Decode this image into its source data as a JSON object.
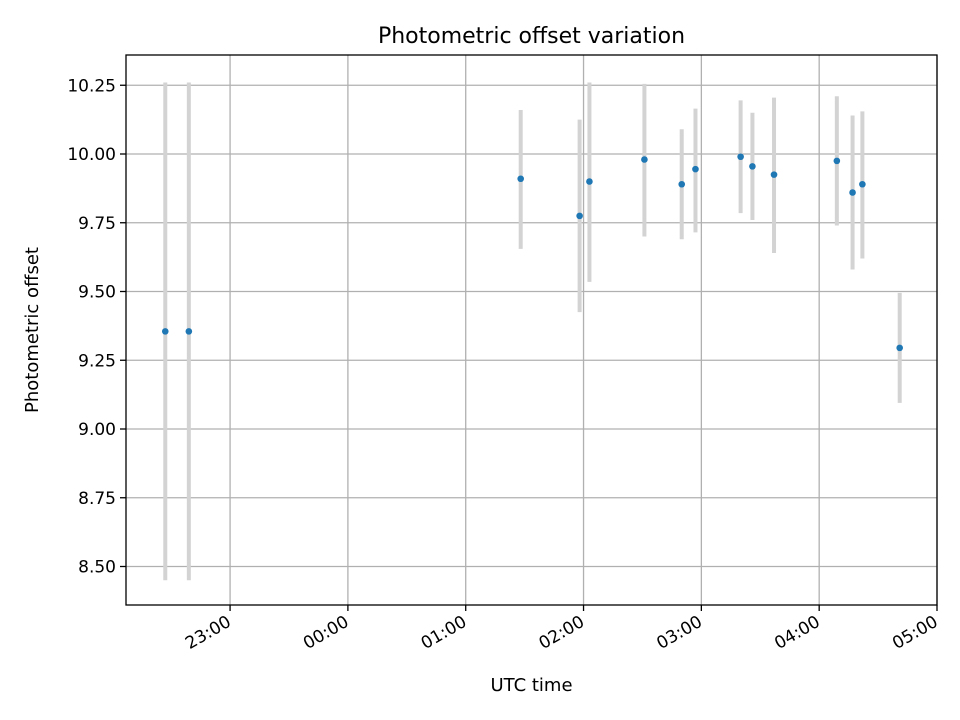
{
  "chart_data": {
    "type": "scatter",
    "title": "Photometric offset variation",
    "xlabel": "UTC time",
    "ylabel": "Photometric offset",
    "x_tick_labels": [
      "23:00",
      "00:00",
      "01:00",
      "02:00",
      "03:00",
      "04:00",
      "05:00"
    ],
    "y_tick_labels": [
      "8.50",
      "8.75",
      "9.00",
      "9.25",
      "9.50",
      "9.75",
      "10.00",
      "10.25"
    ],
    "xlim": [
      "22:07",
      "05:00"
    ],
    "ylim": [
      8.36,
      10.36
    ],
    "grid": true,
    "colors": {
      "marker": "#1f77b4",
      "errorbar": "#d3d3d3",
      "grid": "#b0b0b0"
    },
    "points": [
      {
        "t": "22:27",
        "y": 9.355,
        "lo": 8.45,
        "hi": 10.26
      },
      {
        "t": "22:39",
        "y": 9.355,
        "lo": 8.45,
        "hi": 10.26
      },
      {
        "t": "01:28",
        "y": 9.91,
        "lo": 9.655,
        "hi": 10.16
      },
      {
        "t": "01:58",
        "y": 9.775,
        "lo": 9.425,
        "hi": 10.125
      },
      {
        "t": "02:03",
        "y": 9.9,
        "lo": 9.535,
        "hi": 10.26
      },
      {
        "t": "02:31",
        "y": 9.98,
        "lo": 9.7,
        "hi": 10.255
      },
      {
        "t": "02:50",
        "y": 9.89,
        "lo": 9.69,
        "hi": 10.09
      },
      {
        "t": "02:57",
        "y": 9.945,
        "lo": 9.715,
        "hi": 10.165
      },
      {
        "t": "03:20",
        "y": 9.99,
        "lo": 9.785,
        "hi": 10.195
      },
      {
        "t": "03:26",
        "y": 9.955,
        "lo": 9.76,
        "hi": 10.15
      },
      {
        "t": "03:37",
        "y": 9.925,
        "lo": 9.64,
        "hi": 10.205
      },
      {
        "t": "04:09",
        "y": 9.975,
        "lo": 9.74,
        "hi": 10.21
      },
      {
        "t": "04:17",
        "y": 9.86,
        "lo": 9.58,
        "hi": 10.14
      },
      {
        "t": "04:22",
        "y": 9.89,
        "lo": 9.62,
        "hi": 10.155
      },
      {
        "t": "04:41",
        "y": 9.295,
        "lo": 9.095,
        "hi": 9.495
      }
    ]
  }
}
